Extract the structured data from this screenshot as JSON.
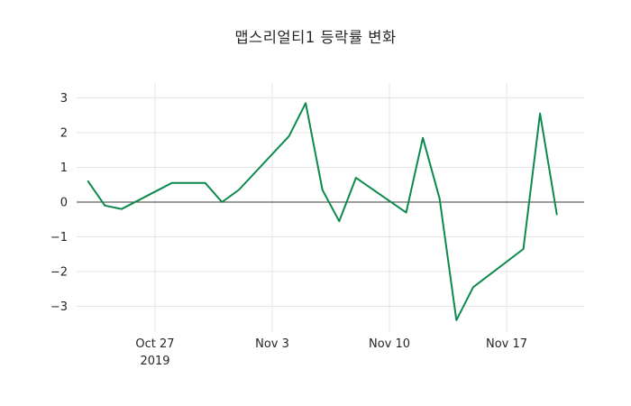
{
  "title": "맵스리얼티1 등락률 변화",
  "chart_data": {
    "type": "line",
    "title": "맵스리얼티1 등락률 변화",
    "xlabel": "",
    "ylabel": "",
    "grid": true,
    "legend": "none",
    "background_color": "#ffffff",
    "grid_color": "#e6e6e6",
    "zero_line_color": "#3a3a3a",
    "tick_label_color": "#262626",
    "ylim": [
      -3.65,
      3.5
    ],
    "y_axis": {
      "tick_values": [
        3,
        2,
        1,
        0,
        -1,
        -2,
        -3
      ],
      "tick_labels": [
        "3",
        "2",
        "1",
        "0",
        "−1",
        "−2",
        "−3"
      ]
    },
    "x_axis": {
      "unit": "days since 2019-10-20",
      "ticks": [
        {
          "day": 7,
          "label": "Oct 27",
          "sublabel": "2019"
        },
        {
          "day": 14,
          "label": "Nov 3",
          "sublabel": ""
        },
        {
          "day": 21,
          "label": "Nov 10",
          "sublabel": ""
        },
        {
          "day": 28,
          "label": "Nov 17",
          "sublabel": ""
        }
      ]
    },
    "series": [
      {
        "name": "맵스리얼티1",
        "color": "#0c8a4d",
        "dates": [
          "2019-10-23",
          "2019-10-24",
          "2019-10-25",
          "2019-10-28",
          "2019-10-29",
          "2019-10-30",
          "2019-10-31",
          "2019-11-01",
          "2019-11-04",
          "2019-11-05",
          "2019-11-06",
          "2019-11-07",
          "2019-11-08",
          "2019-11-11",
          "2019-11-12",
          "2019-11-13",
          "2019-11-14",
          "2019-11-15",
          "2019-11-18",
          "2019-11-19",
          "2019-11-20"
        ],
        "x_days": [
          3,
          4,
          5,
          8,
          9,
          10,
          11,
          12,
          15,
          16,
          17,
          18,
          19,
          22,
          23,
          24,
          25,
          26,
          29,
          30,
          31
        ],
        "values": [
          0.6,
          -0.1,
          -0.2,
          0.55,
          0.55,
          0.55,
          0.0,
          0.35,
          1.9,
          2.85,
          0.35,
          -0.55,
          0.7,
          -0.3,
          1.85,
          0.1,
          -3.4,
          -2.45,
          -1.35,
          2.55,
          -0.35
        ]
      }
    ]
  }
}
